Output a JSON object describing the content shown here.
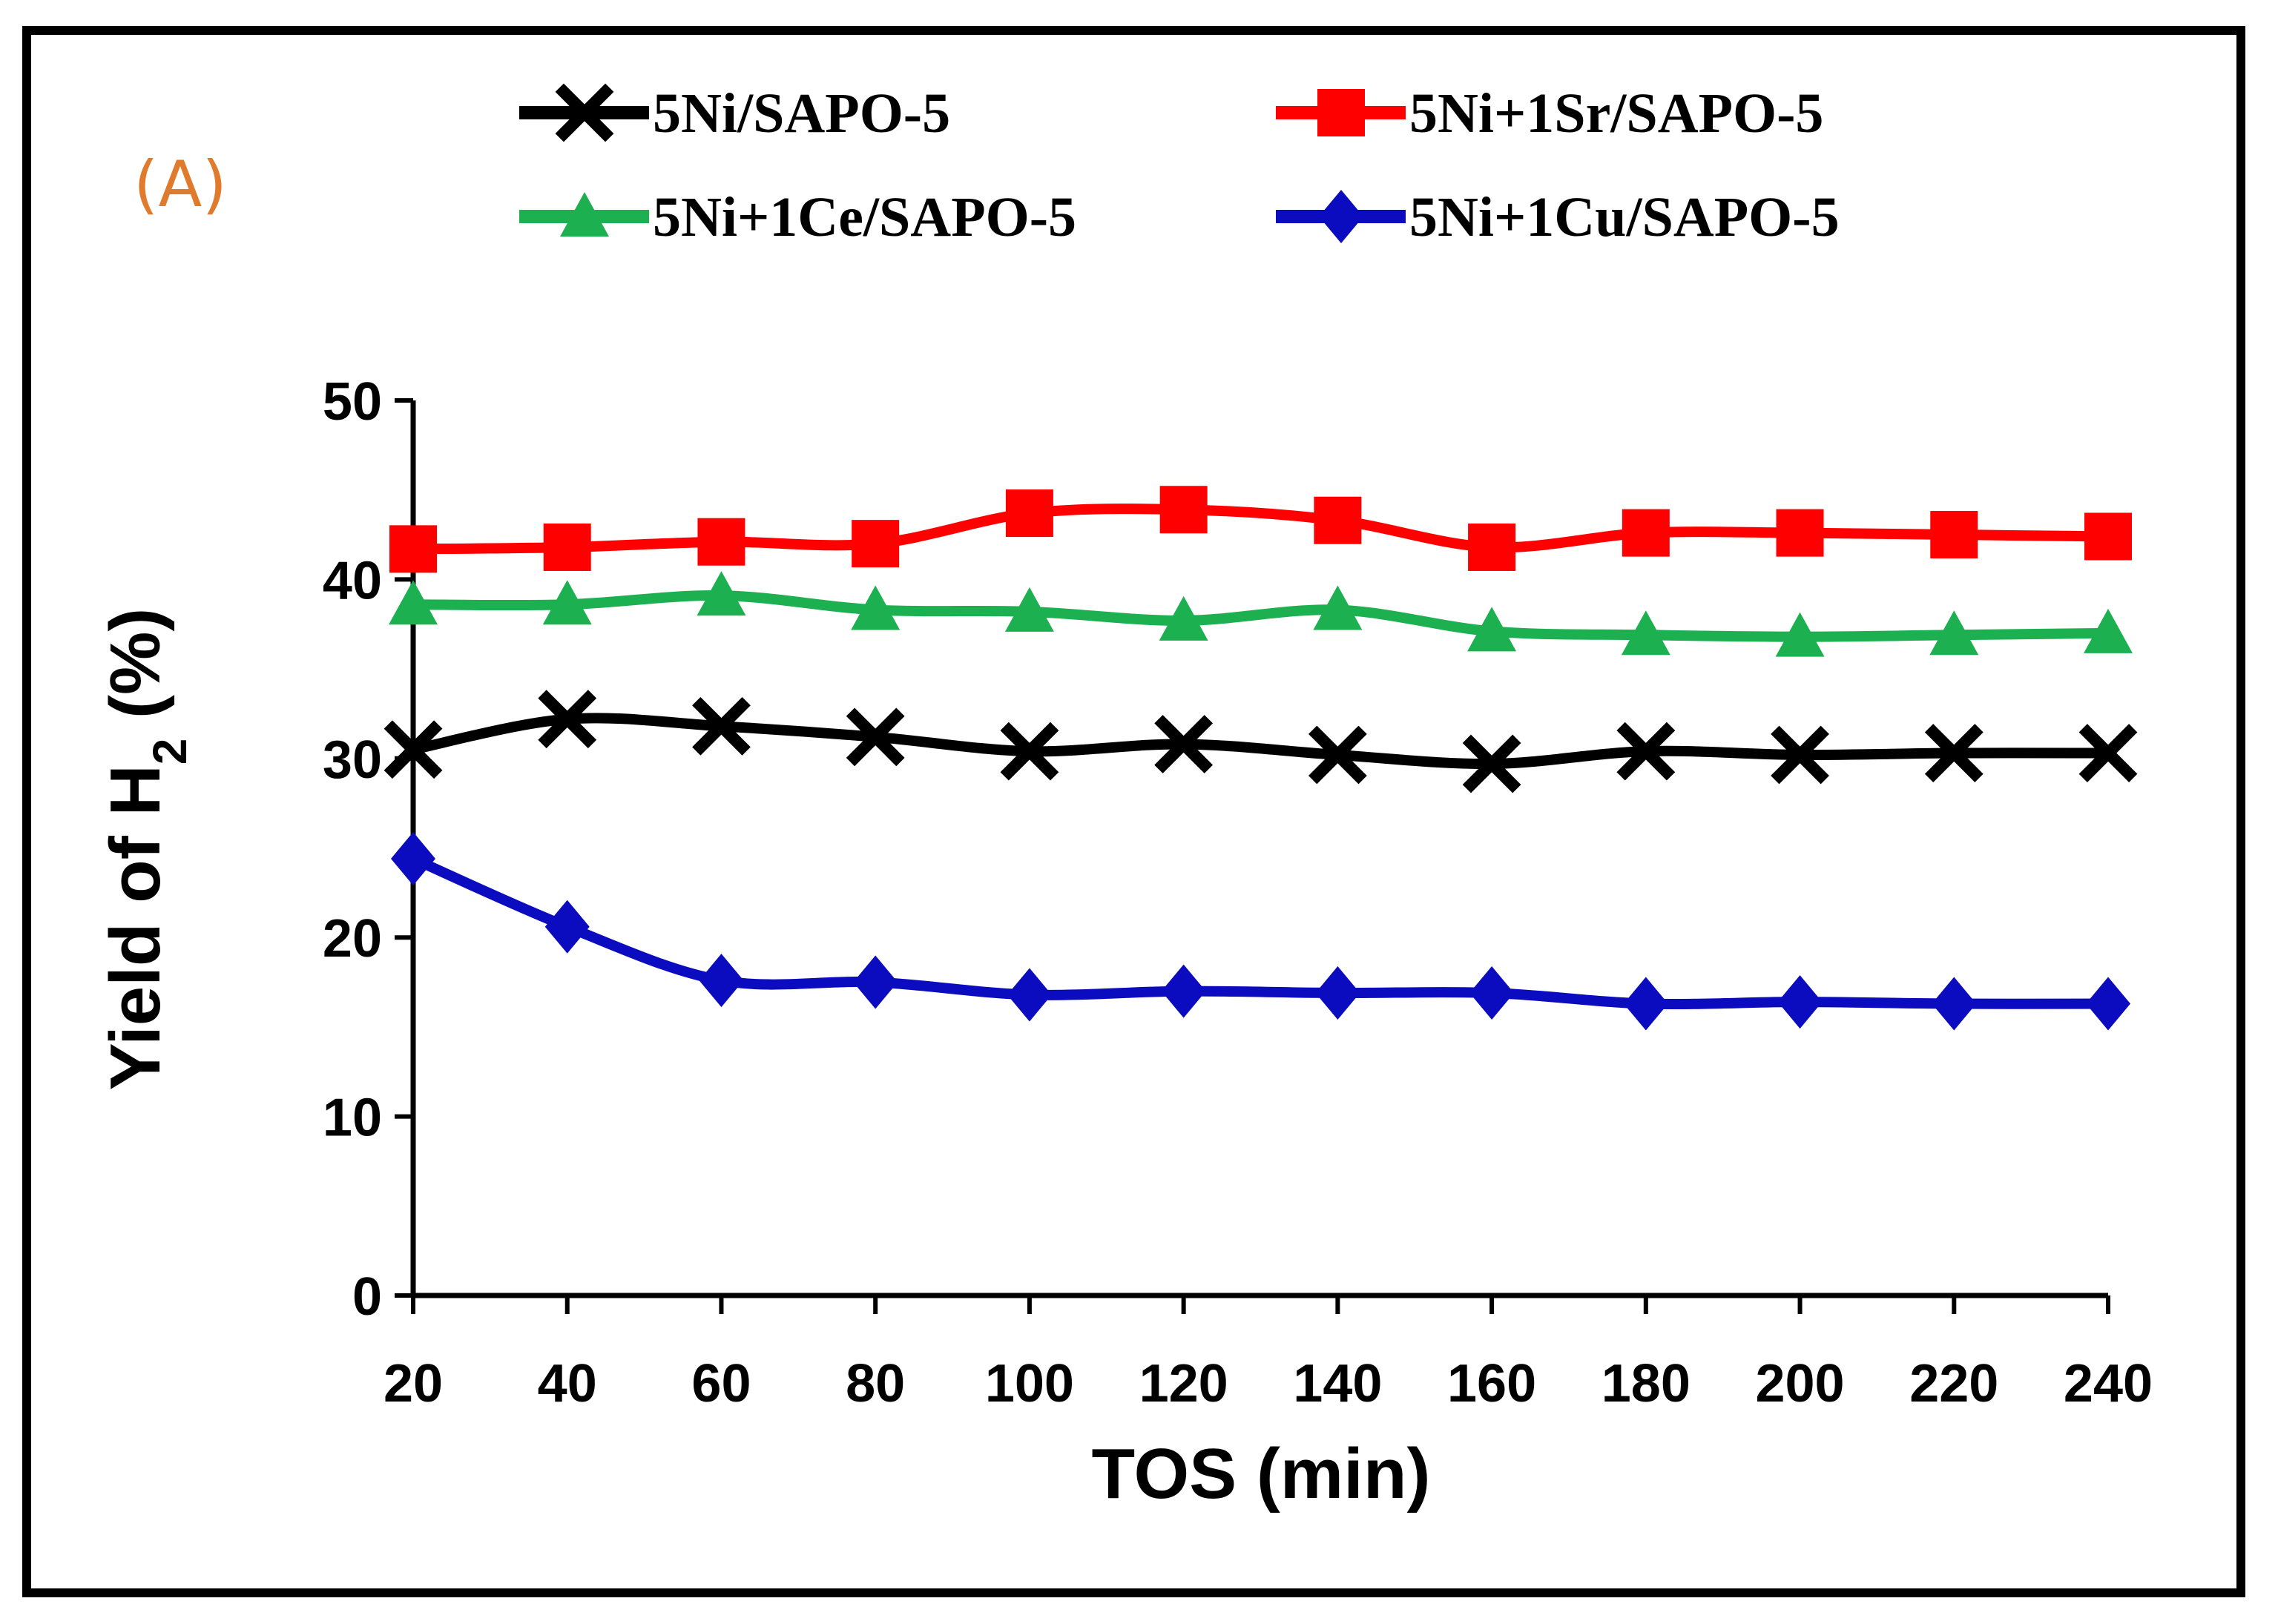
{
  "panel_label": "(A)",
  "chart_data": {
    "type": "line",
    "title": "",
    "xlabel": "TOS (min)",
    "ylabel_main": "Yield of H",
    "ylabel_sub": "2",
    "ylabel_tail": " (%)",
    "x": [
      20,
      40,
      60,
      80,
      100,
      120,
      140,
      160,
      180,
      200,
      220,
      240
    ],
    "x_ticks": [
      "20",
      "40",
      "60",
      "80",
      "100",
      "120",
      "140",
      "160",
      "180",
      "200",
      "220",
      "240"
    ],
    "xlim": [
      20,
      240
    ],
    "ylim": [
      0,
      50
    ],
    "y_ticks": [
      "0",
      "10",
      "20",
      "30",
      "40",
      "50"
    ],
    "grid": false,
    "legend_position": "top",
    "series": [
      {
        "name": "5Ni/SAPO-5",
        "color": "#000000",
        "marker": "x",
        "values": [
          30.5,
          32.2,
          31.8,
          31.2,
          30.4,
          30.8,
          30.2,
          29.7,
          30.4,
          30.2,
          30.3,
          30.3
        ]
      },
      {
        "name": "5Ni+1Sr/SAPO-5",
        "color": "#FF0000",
        "marker": "square",
        "values": [
          41.7,
          41.8,
          42.1,
          42.0,
          43.7,
          43.9,
          43.3,
          41.8,
          42.6,
          42.6,
          42.5,
          42.4
        ]
      },
      {
        "name": "5Ni+1Ce/SAPO-5",
        "color": "#1DB050",
        "marker": "triangle",
        "values": [
          38.6,
          38.6,
          39.1,
          38.3,
          38.2,
          37.7,
          38.3,
          37.1,
          36.9,
          36.8,
          36.9,
          37.0
        ]
      },
      {
        "name": "5Ni+1Cu/SAPO-5",
        "color": "#0B0BBF",
        "marker": "diamond",
        "values": [
          24.4,
          20.6,
          17.6,
          17.5,
          16.8,
          17.0,
          16.9,
          16.9,
          16.3,
          16.4,
          16.3,
          16.3
        ]
      }
    ]
  }
}
